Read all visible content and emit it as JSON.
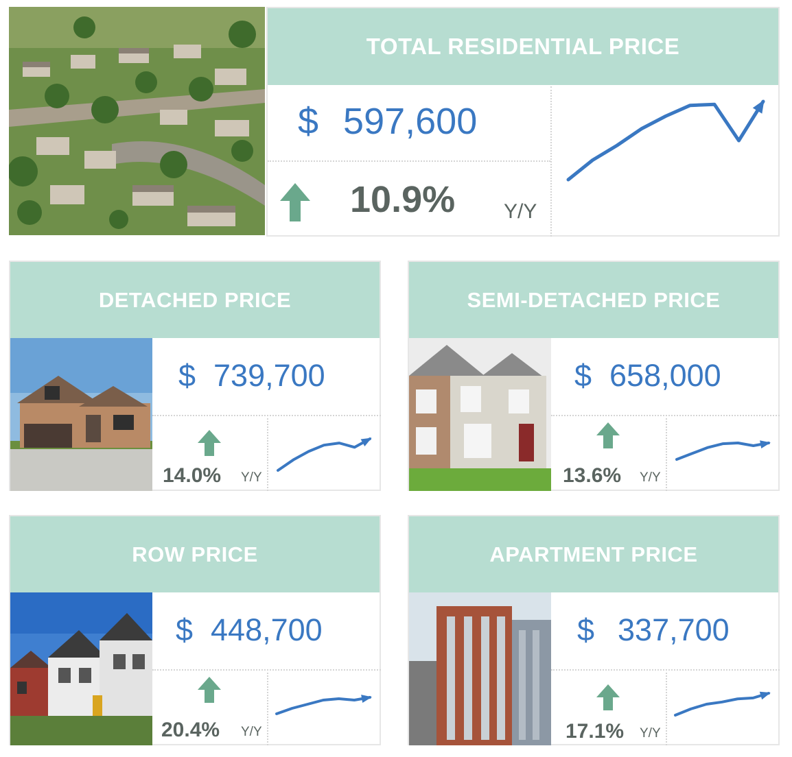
{
  "colors": {
    "header_bg": "#b7ddd1",
    "price_blue": "#3a78c2",
    "arrow_green": "#6aa88c",
    "text_gray": "#5a6460"
  },
  "total": {
    "title": "TOTAL RESIDENTIAL PRICE",
    "currency": "$",
    "price": "597,600",
    "change": "10.9%",
    "period": "Y/Y",
    "icon": "up-arrow-icon",
    "trend": [
      20,
      40,
      55,
      72,
      85,
      96,
      97,
      60,
      100
    ]
  },
  "detached": {
    "title": "DETACHED PRICE",
    "currency": "$",
    "price": "739,700",
    "change": "14.0%",
    "period": "Y/Y",
    "icon": "up-arrow-icon",
    "trend": [
      20,
      45,
      65,
      80,
      85,
      75,
      95
    ]
  },
  "semi": {
    "title": "SEMI-DETACHED PRICE",
    "currency": "$",
    "price": "658,000",
    "change": "13.6%",
    "period": "Y/Y",
    "icon": "up-arrow-icon",
    "trend": [
      30,
      45,
      60,
      70,
      72,
      65,
      72
    ]
  },
  "row": {
    "title": "ROW PRICE",
    "currency": "$",
    "price": "448,700",
    "change": "20.4%",
    "period": "Y/Y",
    "icon": "up-arrow-icon",
    "trend": [
      20,
      40,
      55,
      70,
      75,
      70,
      80
    ]
  },
  "apartment": {
    "title": "APARTMENT PRICE",
    "currency": "$",
    "price": "337,700",
    "change": "17.1%",
    "period": "Y/Y",
    "icon": "up-arrow-icon",
    "trend": [
      20,
      40,
      55,
      62,
      72,
      75,
      90
    ]
  }
}
